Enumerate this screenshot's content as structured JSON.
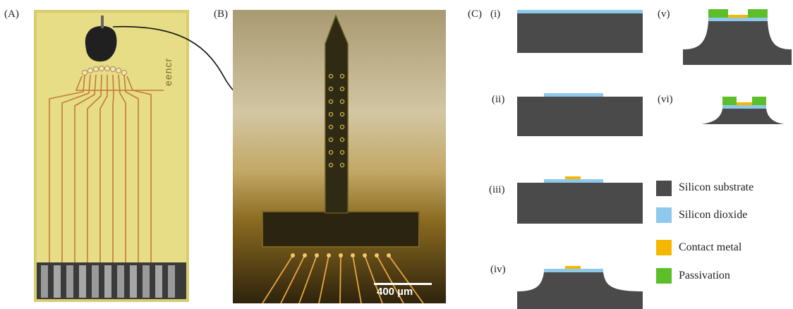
{
  "panels": {
    "a_label": "(A)",
    "b_label": "(B)",
    "c_label": "(C)"
  },
  "panel_a": {
    "board_text": "eencr"
  },
  "panel_b": {
    "scale_bar": "400 µm"
  },
  "panel_c": {
    "steps": [
      "(i)",
      "(ii)",
      "(iii)",
      "(iv)",
      "(v)",
      "(vi)"
    ],
    "legend": [
      {
        "label": "Silicon substrate",
        "color": "#4a4a4a"
      },
      {
        "label": "Silicon dioxide",
        "color": "#8ec9ec"
      },
      {
        "label": "Contact metal",
        "color": "#f5b800"
      },
      {
        "label": "Passivation",
        "color": "#5cbf2a"
      }
    ]
  }
}
